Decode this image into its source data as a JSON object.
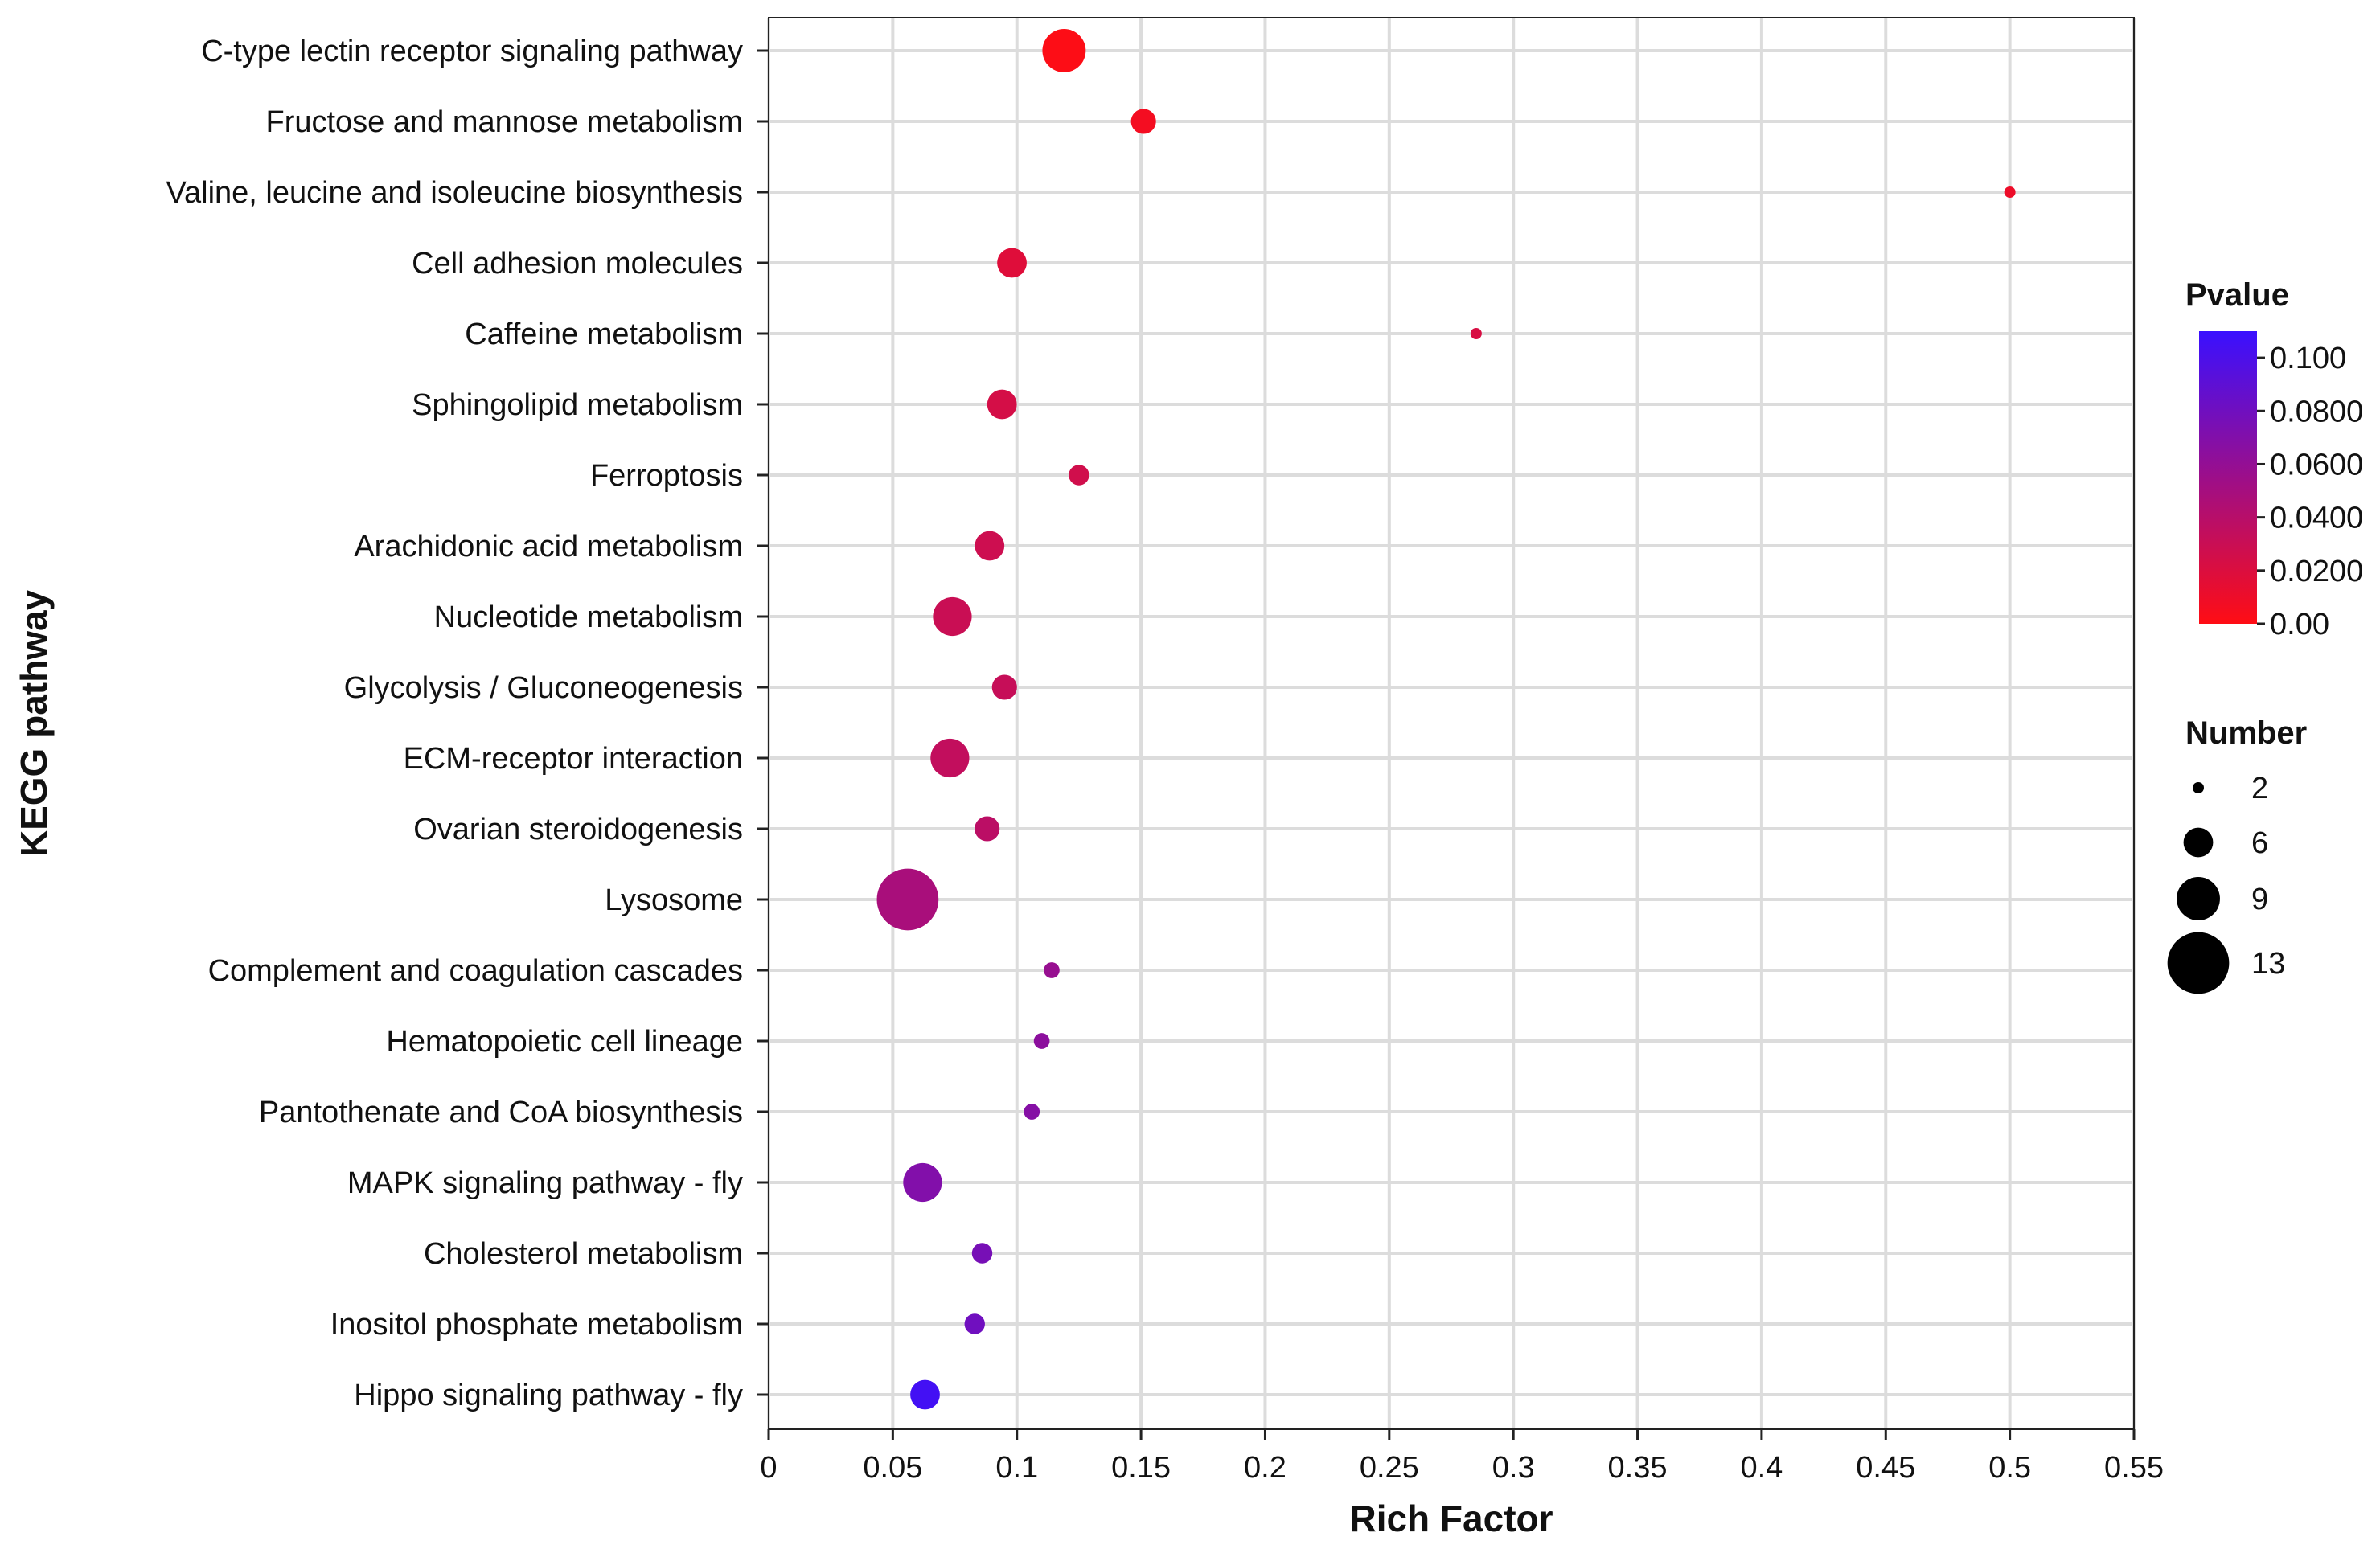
{
  "chart_data": {
    "type": "scatter",
    "subtype": "bubble",
    "xlabel": "Rich Factor",
    "ylabel": "KEGG pathway",
    "xlim": [
      0,
      0.55
    ],
    "x_ticks": [
      0,
      0.05,
      0.1,
      0.15,
      0.2,
      0.25,
      0.3,
      0.35,
      0.4,
      0.45,
      0.5,
      0.55
    ],
    "x_tick_labels": [
      "0",
      "0.05",
      "0.1",
      "0.15",
      "0.2",
      "0.25",
      "0.3",
      "0.35",
      "0.4",
      "0.45",
      "0.5",
      "0.55"
    ],
    "grid": true,
    "points": [
      {
        "pathway": "C-type lectin receptor signaling pathway",
        "rich_factor": 0.119,
        "number": 9,
        "pvalue": 0.001
      },
      {
        "pathway": "Fructose and mannose metabolism",
        "rich_factor": 0.151,
        "number": 5,
        "pvalue": 0.006
      },
      {
        "pathway": "Valine, leucine and isoleucine biosynthesis",
        "rich_factor": 0.5,
        "number": 2,
        "pvalue": 0.01
      },
      {
        "pathway": "Cell adhesion molecules",
        "rich_factor": 0.098,
        "number": 6,
        "pvalue": 0.018
      },
      {
        "pathway": "Caffeine metabolism",
        "rich_factor": 0.285,
        "number": 2,
        "pvalue": 0.022
      },
      {
        "pathway": "Sphingolipid metabolism",
        "rich_factor": 0.094,
        "number": 6,
        "pvalue": 0.024
      },
      {
        "pathway": "Ferroptosis",
        "rich_factor": 0.125,
        "number": 4,
        "pvalue": 0.026
      },
      {
        "pathway": "Arachidonic acid metabolism",
        "rich_factor": 0.089,
        "number": 6,
        "pvalue": 0.028
      },
      {
        "pathway": "Nucleotide metabolism",
        "rich_factor": 0.074,
        "number": 8,
        "pvalue": 0.03
      },
      {
        "pathway": "Glycolysis / Gluconeogenesis",
        "rich_factor": 0.095,
        "number": 5,
        "pvalue": 0.032
      },
      {
        "pathway": "ECM-receptor interaction",
        "rich_factor": 0.073,
        "number": 8,
        "pvalue": 0.034
      },
      {
        "pathway": "Ovarian steroidogenesis",
        "rich_factor": 0.088,
        "number": 5,
        "pvalue": 0.038
      },
      {
        "pathway": "Lysosome",
        "rich_factor": 0.056,
        "number": 13,
        "pvalue": 0.048
      },
      {
        "pathway": "Complement and coagulation cascades",
        "rich_factor": 0.114,
        "number": 3,
        "pvalue": 0.058
      },
      {
        "pathway": "Hematopoietic cell lineage",
        "rich_factor": 0.11,
        "number": 3,
        "pvalue": 0.064
      },
      {
        "pathway": "Pantothenate and CoA biosynthesis",
        "rich_factor": 0.106,
        "number": 3,
        "pvalue": 0.068
      },
      {
        "pathway": "MAPK signaling pathway - fly",
        "rich_factor": 0.062,
        "number": 8,
        "pvalue": 0.07
      },
      {
        "pathway": "Cholesterol metabolism",
        "rich_factor": 0.086,
        "number": 4,
        "pvalue": 0.076
      },
      {
        "pathway": "Inositol phosphate metabolism",
        "rich_factor": 0.083,
        "number": 4,
        "pvalue": 0.08
      },
      {
        "pathway": "Hippo signaling pathway - fly",
        "rich_factor": 0.063,
        "number": 6,
        "pvalue": 0.105
      }
    ],
    "color_legend": {
      "title": "Pvalue",
      "min": 0,
      "max": 0.11,
      "low_color": "#ff0d14",
      "high_color": "#3a10ff",
      "ticks": [
        0,
        0.02,
        0.04,
        0.06,
        0.08,
        0.1
      ],
      "tick_labels": [
        "0.00",
        "0.0200",
        "0.0400",
        "0.0600",
        "0.0800",
        "0.100"
      ]
    },
    "size_legend": {
      "title": "Number",
      "values": [
        2,
        6,
        9,
        13
      ],
      "labels": [
        "2",
        "6",
        "9",
        "13"
      ]
    }
  }
}
